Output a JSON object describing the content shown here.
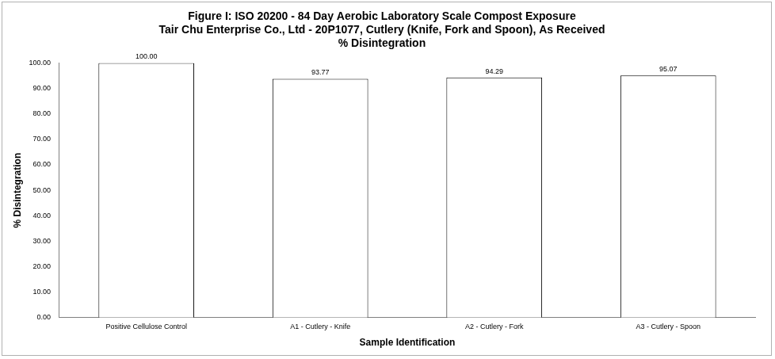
{
  "chart_data": {
    "type": "bar",
    "title": [
      "Figure I: ISO 20200 - 84 Day Aerobic Laboratory Scale Compost Exposure",
      "Tair Chu Enterprise Co., Ltd - 20P1077, Cutlery (Knife, Fork and Spoon), As Received",
      "% Disintegration"
    ],
    "x_label": "Sample Identification",
    "y_label": "% Disintegration",
    "categories": [
      "Positive Cellulose Control",
      "A1 - Cutlery - Knife",
      "A2 - Cutlery - Fork",
      "A3 - Cutlery - Spoon"
    ],
    "values": [
      100,
      93.77,
      94.29,
      95.07
    ],
    "value_labels": [
      "100.00",
      "93.77",
      "94.29",
      "95.07"
    ],
    "color": "#ffffff",
    "data_labels": true,
    "grid": false,
    "ylim": [
      0,
      100
    ],
    "yticks": [
      {
        "value": 0,
        "label": "0.00"
      },
      {
        "value": 10,
        "label": "10.00"
      },
      {
        "value": 20,
        "label": "20.00"
      },
      {
        "value": 30,
        "label": "30.00"
      },
      {
        "value": 40,
        "label": "40.00"
      },
      {
        "value": 50,
        "label": "50.00"
      },
      {
        "value": 60,
        "label": "60.00"
      },
      {
        "value": 70,
        "label": "70.00"
      },
      {
        "value": 80,
        "label": "80.00"
      },
      {
        "value": 90,
        "label": "90.00"
      },
      {
        "value": 100,
        "label": "100.00"
      }
    ]
  }
}
